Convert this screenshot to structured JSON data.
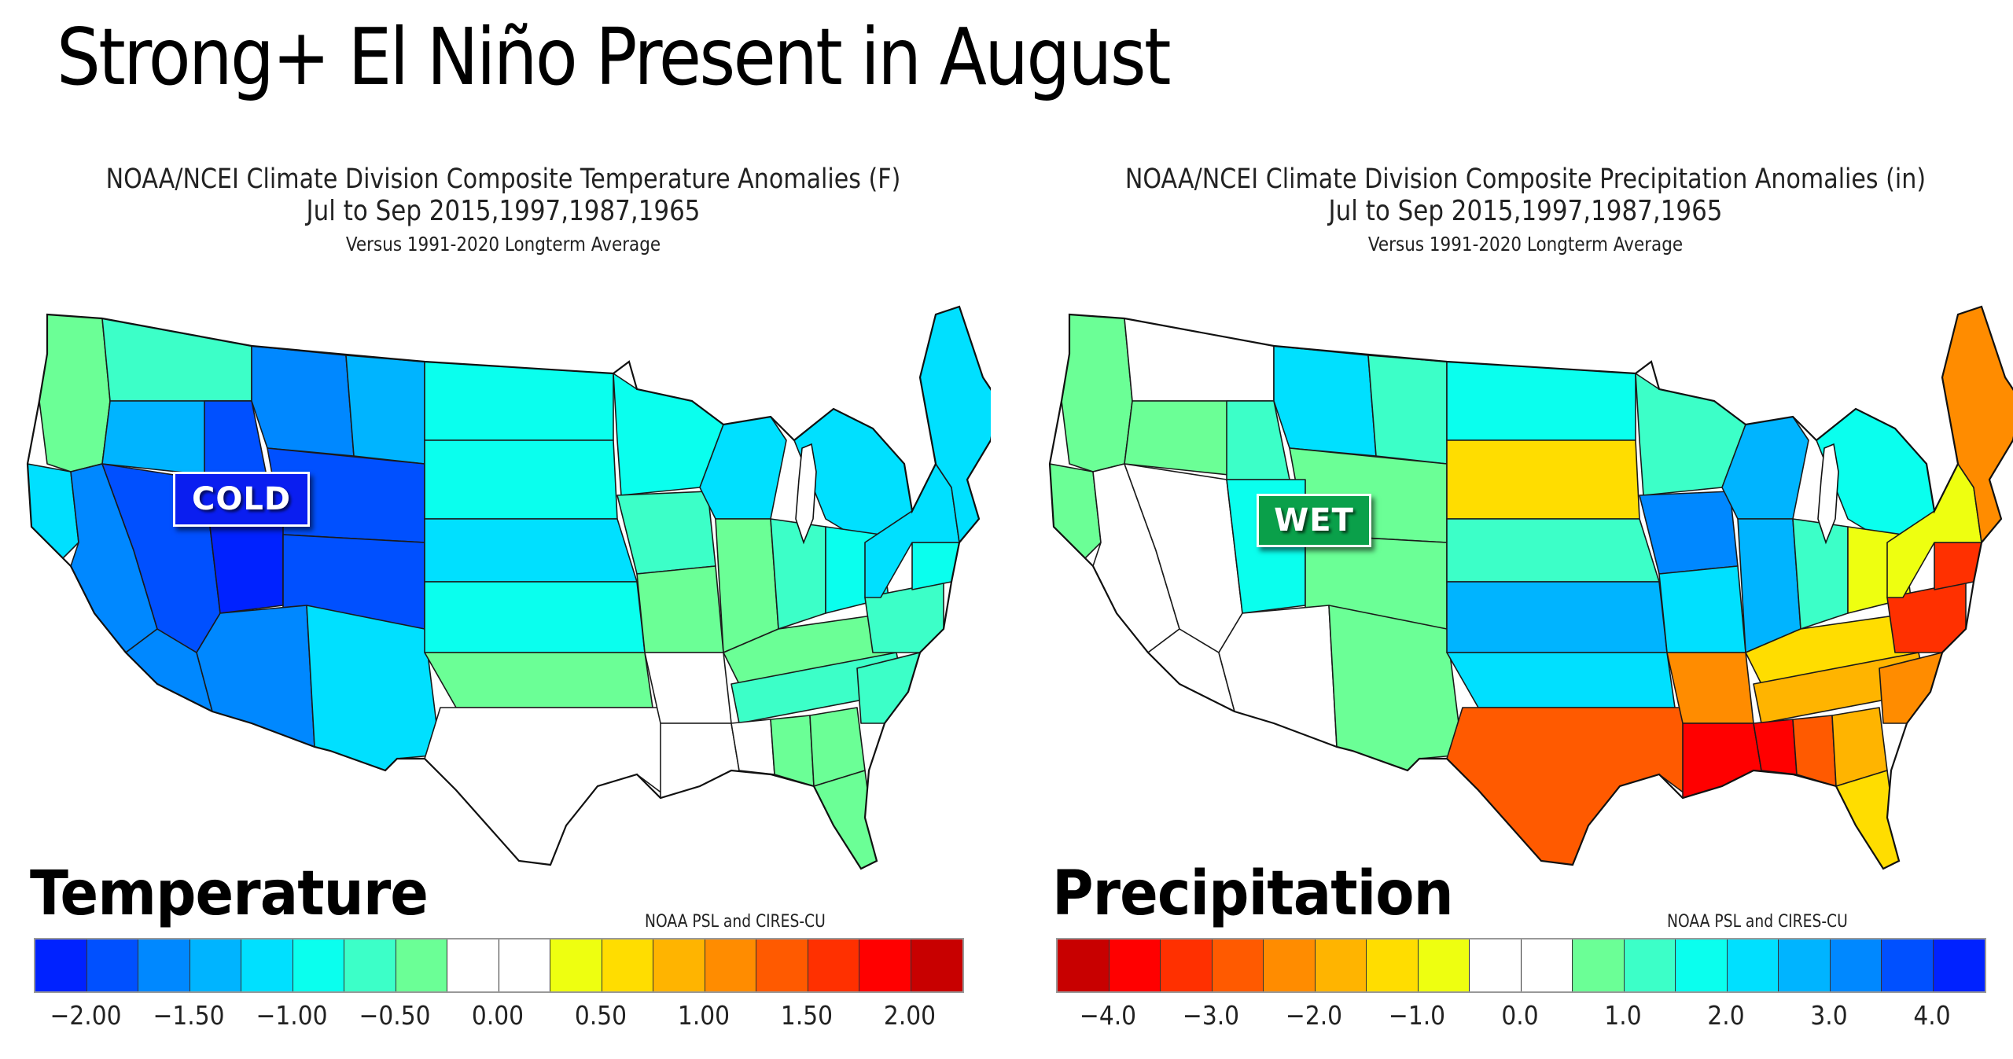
{
  "slide": {
    "title": "Strong+ El Niño Present in August"
  },
  "panels": [
    {
      "id": "temperature",
      "title_line1": "NOAA/NCEI Climate Division Composite Temperature Anomalies (F)",
      "title_line2": "Jul to Sep  2015,1997,1987,1965",
      "title_line3": "Versus 1991-2020 Longterm Average",
      "section_label": "Temperature",
      "badge": "COLD",
      "credit": "NOAA PSL and CIRES-CU",
      "legend_colors": [
        "#0022ff",
        "#0050ff",
        "#0088ff",
        "#00b4ff",
        "#00e0ff",
        "#0affee",
        "#3cffc8",
        "#6bff96",
        "#ffffff",
        "#ffffff",
        "#eeff10",
        "#ffdd00",
        "#ffb400",
        "#ff8c00",
        "#ff5a00",
        "#ff3000",
        "#ff0000",
        "#c80000"
      ],
      "tick_labels": [
        "-2.00",
        "-1.50",
        "-1.00",
        "-0.50",
        "0.00",
        "0.50",
        "1.00",
        "1.50",
        "2.00"
      ]
    },
    {
      "id": "precipitation",
      "title_line1": "NOAA/NCEI Climate Division Composite Precipitation Anomalies (in)",
      "title_line2": "Jul to Sep  2015,1997,1987,1965",
      "title_line3": "Versus 1991-2020 Longterm Average",
      "section_label": "Precipitation",
      "badge": "WET",
      "credit": "NOAA PSL and CIRES-CU",
      "legend_colors": [
        "#c80000",
        "#ff0000",
        "#ff3000",
        "#ff5a00",
        "#ff8c00",
        "#ffb400",
        "#ffdd00",
        "#eeff10",
        "#ffffff",
        "#ffffff",
        "#6bff96",
        "#3cffc8",
        "#0affee",
        "#00e0ff",
        "#00b4ff",
        "#0088ff",
        "#0050ff",
        "#0022ff"
      ],
      "tick_labels": [
        "-4.0",
        "-3.0",
        "-2.0",
        "-1.0",
        "0.0",
        "1.0",
        "2.0",
        "3.0",
        "4.0"
      ]
    }
  ],
  "chart_data": [
    {
      "type": "heatmap",
      "title": "NOAA/NCEI Climate Division Composite Temperature Anomalies (F)",
      "subtitle": "Jul to Sep 2015,1997,1987,1965 — Versus 1991-2020 Longterm Average",
      "units": "F",
      "colorbar_ticks": [
        -2.0,
        -1.5,
        -1.0,
        -0.5,
        0.0,
        0.5,
        1.0,
        1.5,
        2.0
      ],
      "colorbar_range": [
        -2.25,
        2.25
      ],
      "annotation": "COLD",
      "regions": [
        {
          "name": "Pacific Northwest coast",
          "bin": 7
        },
        {
          "name": "Washington interior",
          "bin": 6
        },
        {
          "name": "Oregon interior",
          "bin": 3
        },
        {
          "name": "Northern California coast",
          "bin": 4
        },
        {
          "name": "California interior",
          "bin": 2
        },
        {
          "name": "Southern California",
          "bin": 2
        },
        {
          "name": "Nevada",
          "bin": 1
        },
        {
          "name": "Idaho",
          "bin": 1
        },
        {
          "name": "Montana west",
          "bin": 2
        },
        {
          "name": "Montana east",
          "bin": 3
        },
        {
          "name": "Wyoming",
          "bin": 1
        },
        {
          "name": "Utah",
          "bin": 0
        },
        {
          "name": "Colorado",
          "bin": 1
        },
        {
          "name": "Arizona",
          "bin": 2
        },
        {
          "name": "New Mexico",
          "bin": 4
        },
        {
          "name": "North Dakota",
          "bin": 5
        },
        {
          "name": "South Dakota",
          "bin": 5
        },
        {
          "name": "Nebraska",
          "bin": 4
        },
        {
          "name": "Kansas",
          "bin": 5
        },
        {
          "name": "Oklahoma",
          "bin": 7
        },
        {
          "name": "Texas",
          "bin": 8
        },
        {
          "name": "Minnesota",
          "bin": 5
        },
        {
          "name": "Iowa",
          "bin": 6
        },
        {
          "name": "Missouri",
          "bin": 7
        },
        {
          "name": "Arkansas",
          "bin": 8
        },
        {
          "name": "Louisiana",
          "bin": 8
        },
        {
          "name": "Wisconsin",
          "bin": 4
        },
        {
          "name": "Michigan",
          "bin": 4
        },
        {
          "name": "Illinois",
          "bin": 7
        },
        {
          "name": "Indiana",
          "bin": 6
        },
        {
          "name": "Ohio",
          "bin": 5
        },
        {
          "name": "Kentucky",
          "bin": 7
        },
        {
          "name": "Tennessee",
          "bin": 6
        },
        {
          "name": "Mississippi",
          "bin": 8
        },
        {
          "name": "Alabama",
          "bin": 7
        },
        {
          "name": "Georgia",
          "bin": 7
        },
        {
          "name": "Florida",
          "bin": 7
        },
        {
          "name": "Carolinas",
          "bin": 6
        },
        {
          "name": "Virginia",
          "bin": 6
        },
        {
          "name": "Mid-Atlantic",
          "bin": 5
        },
        {
          "name": "New York / Pennsylvania",
          "bin": 4
        },
        {
          "name": "New England",
          "bin": 4
        }
      ]
    },
    {
      "type": "heatmap",
      "title": "NOAA/NCEI Climate Division Composite Precipitation Anomalies (in)",
      "subtitle": "Jul to Sep 2015,1997,1987,1965 — Versus 1991-2020 Longterm Average",
      "units": "in",
      "colorbar_ticks": [
        -4.0,
        -3.0,
        -2.0,
        -1.0,
        0.0,
        1.0,
        2.0,
        3.0,
        4.0
      ],
      "colorbar_range": [
        -4.5,
        4.5
      ],
      "annotation": "WET",
      "regions": [
        {
          "name": "Pacific Northwest coast",
          "bin": 10
        },
        {
          "name": "Washington interior",
          "bin": 8
        },
        {
          "name": "Oregon interior",
          "bin": 10
        },
        {
          "name": "Northern California coast",
          "bin": 10
        },
        {
          "name": "California interior",
          "bin": 8
        },
        {
          "name": "Southern California",
          "bin": 8
        },
        {
          "name": "Nevada",
          "bin": 8
        },
        {
          "name": "Idaho",
          "bin": 11
        },
        {
          "name": "Montana west",
          "bin": 13
        },
        {
          "name": "Montana east",
          "bin": 11
        },
        {
          "name": "Wyoming",
          "bin": 10
        },
        {
          "name": "Utah",
          "bin": 12
        },
        {
          "name": "Colorado",
          "bin": 10
        },
        {
          "name": "Arizona",
          "bin": 8
        },
        {
          "name": "New Mexico",
          "bin": 10
        },
        {
          "name": "North Dakota",
          "bin": 12
        },
        {
          "name": "South Dakota",
          "bin": 6
        },
        {
          "name": "Nebraska",
          "bin": 11
        },
        {
          "name": "Kansas",
          "bin": 14
        },
        {
          "name": "Oklahoma",
          "bin": 13
        },
        {
          "name": "Texas",
          "bin": 3
        },
        {
          "name": "Minnesota",
          "bin": 11
        },
        {
          "name": "Iowa",
          "bin": 15
        },
        {
          "name": "Missouri",
          "bin": 13
        },
        {
          "name": "Arkansas",
          "bin": 4
        },
        {
          "name": "Louisiana",
          "bin": 1
        },
        {
          "name": "Wisconsin",
          "bin": 14
        },
        {
          "name": "Michigan",
          "bin": 12
        },
        {
          "name": "Illinois",
          "bin": 14
        },
        {
          "name": "Indiana",
          "bin": 11
        },
        {
          "name": "Ohio",
          "bin": 7
        },
        {
          "name": "Kentucky",
          "bin": 6
        },
        {
          "name": "Tennessee",
          "bin": 5
        },
        {
          "name": "Mississippi",
          "bin": 1
        },
        {
          "name": "Alabama",
          "bin": 3
        },
        {
          "name": "Georgia",
          "bin": 5
        },
        {
          "name": "Florida",
          "bin": 6
        },
        {
          "name": "Carolinas",
          "bin": 4
        },
        {
          "name": "Virginia",
          "bin": 2
        },
        {
          "name": "Mid-Atlantic",
          "bin": 2
        },
        {
          "name": "New York / Pennsylvania",
          "bin": 7
        },
        {
          "name": "New England",
          "bin": 4
        }
      ]
    }
  ]
}
